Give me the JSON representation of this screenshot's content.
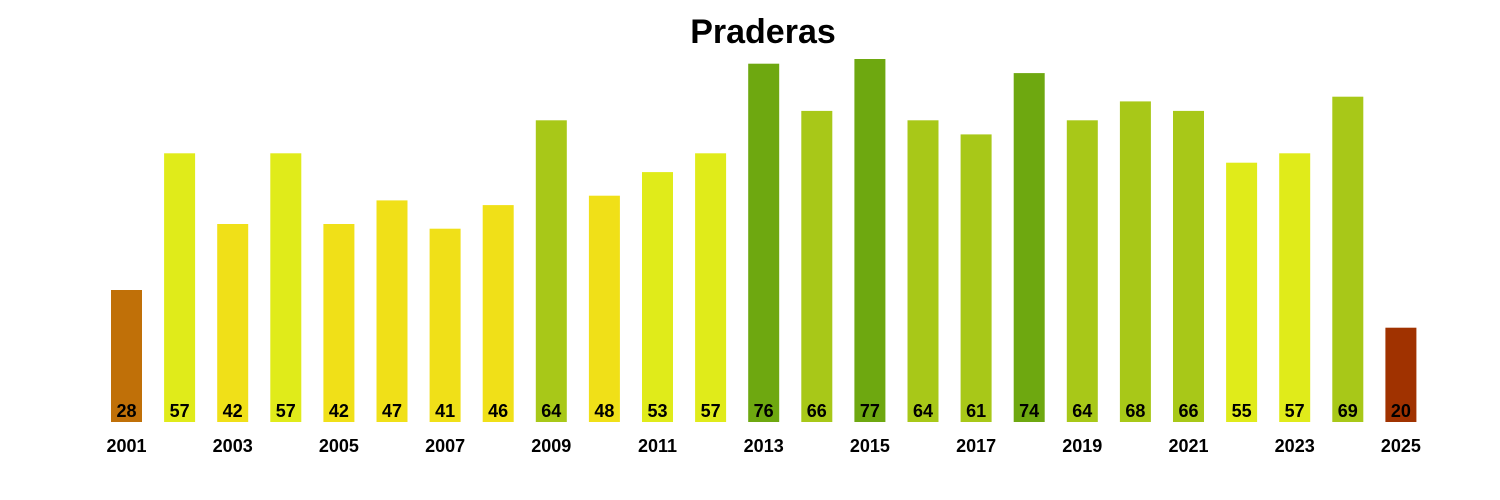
{
  "chart_data": {
    "type": "bar",
    "title": "Praderas",
    "categories": [
      "2001",
      "2002",
      "2003",
      "2004",
      "2005",
      "2006",
      "2007",
      "2008",
      "2009",
      "2010",
      "2011",
      "2012",
      "2013",
      "2014",
      "2015",
      "2016",
      "2017",
      "2018",
      "2019",
      "2020",
      "2021",
      "2022",
      "2023",
      "2024",
      "2025"
    ],
    "values": [
      28,
      57,
      42,
      57,
      42,
      47,
      41,
      46,
      64,
      48,
      53,
      57,
      76,
      66,
      77,
      64,
      61,
      74,
      64,
      68,
      66,
      55,
      57,
      69,
      20
    ],
    "tick_labels": [
      "2001",
      "2003",
      "2005",
      "2007",
      "2009",
      "2011",
      "2013",
      "2015",
      "2017",
      "2019",
      "2021",
      "2023",
      "2025"
    ],
    "colors": [
      "#c07008",
      "#e0eb1a",
      "#f0e018",
      "#e0eb1a",
      "#f0e018",
      "#f0e018",
      "#f0e018",
      "#f0e018",
      "#a8c818",
      "#f0e018",
      "#e0eb1a",
      "#e0eb1a",
      "#6ea810",
      "#a8c818",
      "#6ea810",
      "#a8c818",
      "#a8c818",
      "#6ea810",
      "#a8c818",
      "#a8c818",
      "#a8c818",
      "#e0eb1a",
      "#e0eb1a",
      "#a8c818",
      "#a03200"
    ],
    "ylim": [
      0,
      77
    ],
    "xlabel": "",
    "ylabel": "",
    "grid": false,
    "legend": "none"
  }
}
